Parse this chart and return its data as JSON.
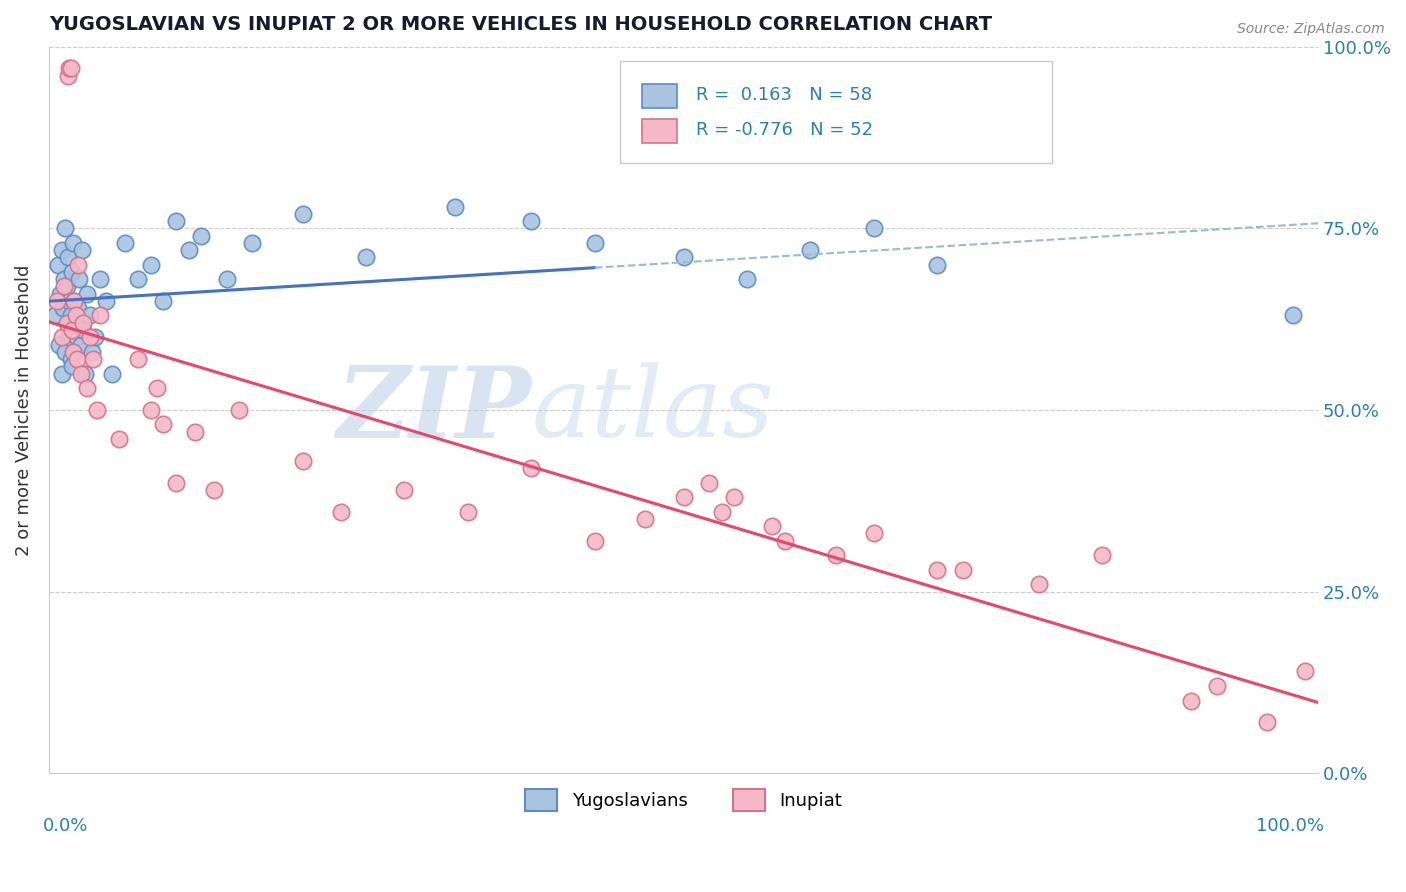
{
  "title": "YUGOSLAVIAN VS INUPIAT 2 OR MORE VEHICLES IN HOUSEHOLD CORRELATION CHART",
  "source_text": "Source: ZipAtlas.com",
  "ylabel": "2 or more Vehicles in Household",
  "legend_label1": "Yugoslavians",
  "legend_label2": "Inupiat",
  "R1": 0.163,
  "N1": 58,
  "R2": -0.776,
  "N2": 52,
  "blue_face": "#aac4e0",
  "blue_edge": "#5b8dc8",
  "pink_face": "#f4b8c8",
  "pink_edge": "#d4748a",
  "line_blue": "#4472c4",
  "line_pink": "#e8476a",
  "line_dash_color": "#9ab8d8",
  "xmin": 0.0,
  "xmax": 1.0,
  "ymin": 0.0,
  "ymax": 1.0,
  "ytick_vals": [
    0.0,
    0.25,
    0.5,
    0.75,
    1.0
  ],
  "ytick_labels": [
    "0.0%",
    "25.0%",
    "50.0%",
    "75.0%",
    "100.0%"
  ],
  "blue_x": [
    0.005,
    0.007,
    0.008,
    0.009,
    0.01,
    0.01,
    0.011,
    0.012,
    0.013,
    0.013,
    0.014,
    0.015,
    0.015,
    0.016,
    0.016,
    0.017,
    0.017,
    0.018,
    0.018,
    0.019,
    0.019,
    0.02,
    0.02,
    0.021,
    0.022,
    0.023,
    0.024,
    0.025,
    0.026,
    0.027,
    0.028,
    0.03,
    0.032,
    0.034,
    0.036,
    0.04,
    0.045,
    0.05,
    0.06,
    0.07,
    0.08,
    0.09,
    0.1,
    0.11,
    0.12,
    0.14,
    0.16,
    0.2,
    0.25,
    0.32,
    0.38,
    0.43,
    0.5,
    0.55,
    0.6,
    0.65,
    0.7,
    0.98
  ],
  "blue_y": [
    0.63,
    0.7,
    0.59,
    0.66,
    0.55,
    0.72,
    0.64,
    0.68,
    0.58,
    0.75,
    0.67,
    0.62,
    0.71,
    0.6,
    0.65,
    0.57,
    0.63,
    0.69,
    0.56,
    0.73,
    0.61,
    0.65,
    0.58,
    0.62,
    0.6,
    0.64,
    0.68,
    0.59,
    0.72,
    0.61,
    0.55,
    0.66,
    0.63,
    0.58,
    0.6,
    0.68,
    0.65,
    0.55,
    0.73,
    0.68,
    0.7,
    0.65,
    0.76,
    0.72,
    0.74,
    0.68,
    0.73,
    0.77,
    0.71,
    0.78,
    0.76,
    0.73,
    0.71,
    0.68,
    0.72,
    0.75,
    0.7,
    0.63
  ],
  "pink_x": [
    0.006,
    0.01,
    0.012,
    0.014,
    0.015,
    0.016,
    0.017,
    0.018,
    0.019,
    0.02,
    0.021,
    0.022,
    0.023,
    0.025,
    0.027,
    0.03,
    0.032,
    0.035,
    0.038,
    0.04,
    0.055,
    0.07,
    0.08,
    0.085,
    0.09,
    0.1,
    0.115,
    0.13,
    0.15,
    0.2,
    0.23,
    0.28,
    0.33,
    0.38,
    0.43,
    0.47,
    0.5,
    0.52,
    0.53,
    0.54,
    0.57,
    0.58,
    0.62,
    0.65,
    0.7,
    0.72,
    0.78,
    0.83,
    0.9,
    0.92,
    0.96,
    0.99
  ],
  "pink_y": [
    0.65,
    0.6,
    0.67,
    0.62,
    0.96,
    0.97,
    0.97,
    0.61,
    0.58,
    0.65,
    0.63,
    0.57,
    0.7,
    0.55,
    0.62,
    0.53,
    0.6,
    0.57,
    0.5,
    0.63,
    0.46,
    0.57,
    0.5,
    0.53,
    0.48,
    0.4,
    0.47,
    0.39,
    0.5,
    0.43,
    0.36,
    0.39,
    0.36,
    0.42,
    0.32,
    0.35,
    0.38,
    0.4,
    0.36,
    0.38,
    0.34,
    0.32,
    0.3,
    0.33,
    0.28,
    0.28,
    0.26,
    0.3,
    0.1,
    0.12,
    0.07,
    0.14
  ],
  "axis_color": "#2980b9",
  "title_color": "#1a1a2e",
  "watermark_zip_color": "#c5d8ea",
  "watermark_atlas_color": "#c8d8ee"
}
